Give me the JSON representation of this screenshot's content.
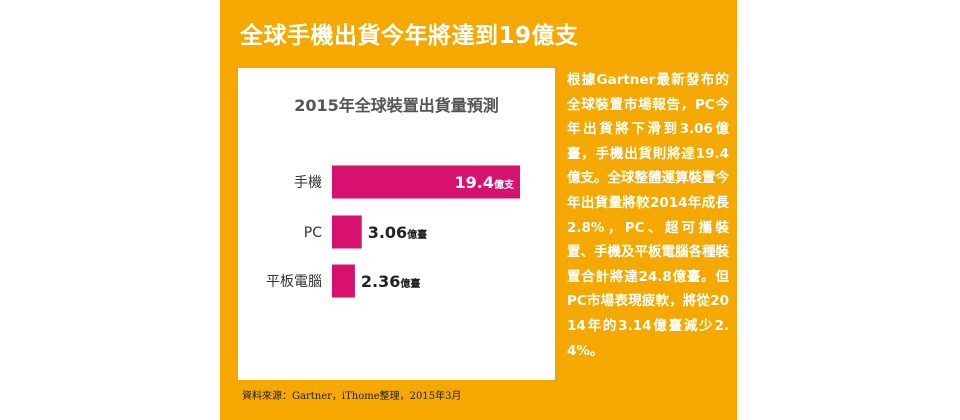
{
  "headline": "全球手機出貨今年將達到19億支",
  "source": "資料來源：Gartner，iThome整理，2015年3月",
  "body_text": "根據Gartner最新發布的全球裝置市場報告，PC今年出貨將下滑到3.06億臺，手機出貨則將達19.4億支。全球整體運算裝置今年出貨量將較2014年成長2.8%，PC、超可攜裝置、手機及平板電腦各種裝置合計將達24.8億臺。但PC市場表現疲軟，將從2014年的3.14億臺減少2.4%。",
  "colors": {
    "panel": "#f5a800",
    "bar": "#d6116e",
    "text_light": "#ffffff"
  },
  "chart_data": {
    "type": "bar",
    "orientation": "horizontal",
    "title": "2015年全球裝置出貨量預測",
    "categories": [
      "手機",
      "PC",
      "平板電腦"
    ],
    "values": [
      19.4,
      3.06,
      2.36
    ],
    "value_labels": [
      {
        "number": "19.4",
        "unit": "億支"
      },
      {
        "number": "3.06",
        "unit": "億臺"
      },
      {
        "number": "2.36",
        "unit": "億臺"
      }
    ],
    "bar_color": "#d6116e",
    "grid": false,
    "legend": "none"
  }
}
